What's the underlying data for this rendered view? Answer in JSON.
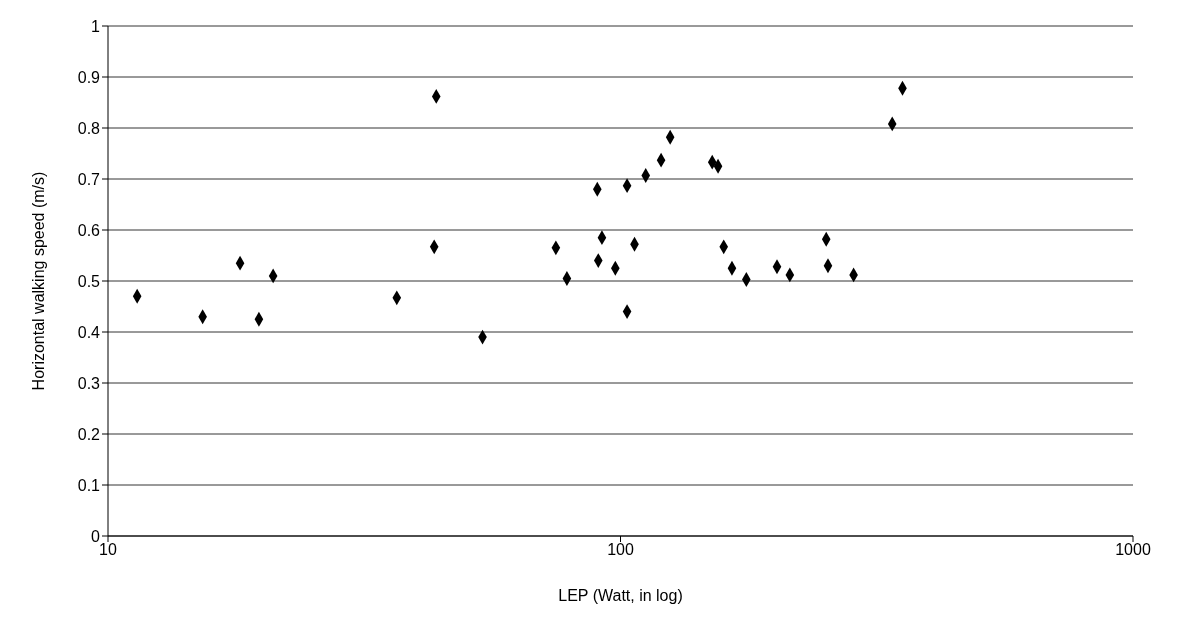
{
  "chart_data": {
    "type": "scatter",
    "xlabel": "LEP (Watt, in log)",
    "ylabel": "Horizontal walking speed (m/s)",
    "log": "x",
    "xlim": [
      10,
      1000
    ],
    "xticks": [
      10,
      100,
      1000
    ],
    "ylim": [
      0,
      1
    ],
    "yticks": [
      0,
      0.1,
      0.2,
      0.3,
      0.4,
      0.5,
      0.6,
      0.7,
      0.8,
      0.9,
      1
    ],
    "grid": "y",
    "marker": "diamond",
    "legend": false,
    "series": [
      {
        "color": "#000000",
        "x": [
          11.4,
          15.3,
          18.1,
          19.7,
          21.0,
          36.6,
          43.7,
          43.3,
          53.8,
          74.8,
          78.6,
          90.1,
          90.5,
          92,
          97.7,
          103,
          103,
          106.5,
          112,
          120,
          125,
          151,
          155,
          159,
          165,
          176,
          202,
          214,
          252,
          254,
          285,
          339,
          355
        ],
        "values": [
          0.47,
          0.43,
          0.535,
          0.425,
          0.51,
          0.467,
          0.862,
          0.567,
          0.39,
          0.565,
          0.505,
          0.68,
          0.54,
          0.585,
          0.525,
          0.687,
          0.44,
          0.572,
          0.707,
          0.737,
          0.782,
          0.733,
          0.725,
          0.567,
          0.525,
          0.503,
          0.528,
          0.512,
          0.582,
          0.53,
          0.512,
          0.808,
          0.878
        ]
      }
    ]
  }
}
